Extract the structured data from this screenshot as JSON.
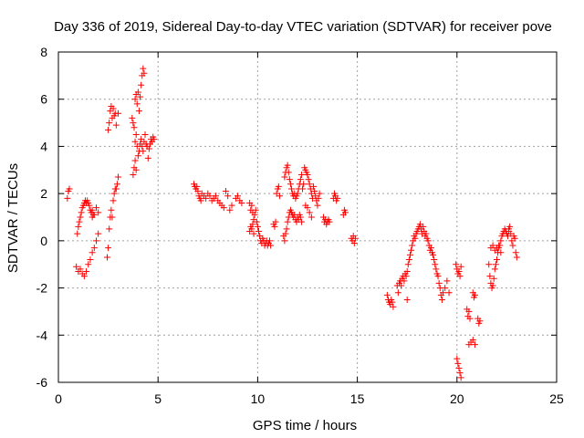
{
  "chart_data": {
    "type": "scatter",
    "title": "Day 336 of 2019, Sidereal Day-to-day VTEC variation (SDTVAR) for receiver pove",
    "xlabel": "GPS time / hours",
    "ylabel": "SDTVAR / TECUs",
    "xlim": [
      0,
      25
    ],
    "ylim": [
      -6,
      8
    ],
    "xticks": [
      "0",
      "5",
      "10",
      "15",
      "20",
      "25"
    ],
    "yticks": [
      "8",
      "6",
      "4",
      "2",
      "0",
      "-2",
      "-4",
      "-6"
    ],
    "grid": true,
    "marker": "+",
    "marker_color": "#ff0000",
    "series": [
      {
        "name": "SDTVAR",
        "segments": [
          {
            "x": [
              0.45,
              0.5,
              0.55
            ],
            "y": [
              1.8,
              2.1,
              2.2
            ]
          },
          {
            "x": [
              0.95,
              1.0,
              1.05,
              1.1,
              1.15,
              1.2,
              1.25,
              1.3,
              1.35,
              1.4,
              1.45,
              1.5,
              1.55,
              1.6,
              1.65,
              1.7,
              1.75
            ],
            "y": [
              0.3,
              0.6,
              0.8,
              1.0,
              1.2,
              1.4,
              1.5,
              1.6,
              1.7,
              1.6,
              1.7,
              1.6,
              1.5,
              1.3,
              1.2,
              1.0,
              1.1
            ]
          },
          {
            "x": [
              0.9,
              1.0,
              1.1,
              1.2,
              1.3,
              1.4,
              1.5,
              1.6,
              1.7,
              1.8,
              1.9,
              2.0
            ],
            "y": [
              -1.1,
              -1.3,
              -1.2,
              -1.4,
              -1.5,
              -1.3,
              -1.0,
              -0.8,
              -0.5,
              -0.3,
              0.0,
              0.3
            ]
          },
          {
            "x": [
              1.7,
              1.8,
              1.9,
              2.0
            ],
            "y": [
              1.3,
              1.1,
              1.4,
              1.2
            ]
          },
          {
            "x": [
              2.45,
              2.5,
              2.55,
              2.6,
              2.65,
              2.7,
              2.75,
              2.8,
              2.85,
              2.9,
              2.95,
              3.0
            ],
            "y": [
              -0.7,
              -0.3,
              0.5,
              1.0,
              1.3,
              1.0,
              1.7,
              2.0,
              2.2,
              2.2,
              2.4,
              2.7
            ]
          },
          {
            "x": [
              2.5,
              2.55,
              2.6,
              2.65,
              2.7,
              2.75,
              2.8,
              2.85,
              2.9,
              3.0
            ],
            "y": [
              4.7,
              5.0,
              5.5,
              5.7,
              5.2,
              5.6,
              5.3,
              5.4,
              4.9,
              5.4
            ]
          },
          {
            "x": [
              3.7,
              3.75,
              3.8,
              3.85,
              3.9,
              3.95,
              4.0,
              4.05,
              4.1,
              4.15,
              4.2,
              4.25,
              4.3,
              4.35,
              4.4,
              4.45
            ],
            "y": [
              5.2,
              5.0,
              4.8,
              4.2,
              4.5,
              4.0,
              3.6,
              3.8,
              4.1,
              4.3,
              4.0,
              3.8,
              4.2,
              4.5,
              4.1,
              4.0
            ]
          },
          {
            "x": [
              3.75,
              3.8,
              3.85,
              3.9
            ],
            "y": [
              2.8,
              3.1,
              3.4,
              3.0
            ]
          },
          {
            "x": [
              3.85,
              3.9,
              3.95,
              4.0,
              4.05,
              4.1,
              4.15,
              4.2,
              4.25,
              4.3
            ],
            "y": [
              6.0,
              6.2,
              5.8,
              6.3,
              5.5,
              6.1,
              6.6,
              7.0,
              7.3,
              7.1
            ]
          },
          {
            "x": [
              4.5,
              4.55,
              4.6,
              4.65,
              4.7,
              4.75,
              4.8
            ],
            "y": [
              3.5,
              3.9,
              4.1,
              4.3,
              4.2,
              4.4,
              4.3
            ]
          },
          {
            "x": [
              6.8,
              6.85,
              6.9,
              6.95,
              7.0,
              7.05,
              7.1,
              7.15,
              7.2,
              7.3,
              7.4,
              7.5,
              7.6,
              7.7,
              7.8,
              7.9,
              8.0,
              8.1,
              8.2,
              8.3,
              8.4,
              8.5,
              8.6,
              8.7
            ],
            "y": [
              2.4,
              2.3,
              2.2,
              2.3,
              2.1,
              1.9,
              1.8,
              1.7,
              2.0,
              1.9,
              1.8,
              2.0,
              1.9,
              1.7,
              1.8,
              1.9,
              1.7,
              1.6,
              1.5,
              1.4,
              2.1,
              1.9,
              1.3,
              1.5
            ]
          },
          {
            "x": [
              8.9,
              9.0,
              9.1,
              9.2
            ],
            "y": [
              1.8,
              1.9,
              1.7,
              1.6
            ]
          },
          {
            "x": [
              9.6,
              9.65,
              9.7,
              9.75,
              9.8,
              9.85,
              9.9,
              9.95,
              10.0,
              10.05,
              10.1,
              10.15,
              10.2,
              10.25,
              10.3,
              10.35,
              10.4,
              10.45,
              10.5,
              10.55,
              10.6,
              10.65
            ],
            "y": [
              1.6,
              1.3,
              1.5,
              1.2,
              0.9,
              1.1,
              1.3,
              0.8,
              0.6,
              0.4,
              0.2,
              0.0,
              -0.1,
              0.1,
              0.0,
              -0.2,
              -0.1,
              0.0,
              -0.2,
              -0.1,
              0.0,
              -0.2
            ]
          },
          {
            "x": [
              9.6,
              9.65,
              9.7,
              9.75,
              9.8
            ],
            "y": [
              0.4,
              0.6,
              0.5,
              0.7,
              0.3
            ]
          },
          {
            "x": [
              10.8,
              10.85,
              10.9,
              10.95,
              11.0,
              11.05,
              11.1
            ],
            "y": [
              0.7,
              0.6,
              0.8,
              2.0,
              2.2,
              2.3,
              1.9
            ]
          },
          {
            "x": [
              11.3,
              11.35,
              11.4,
              11.45,
              11.5,
              11.55,
              11.6,
              11.65,
              11.7,
              11.75,
              11.8,
              11.85,
              11.9,
              11.95,
              12.0,
              12.05,
              12.1,
              12.15,
              12.2
            ],
            "y": [
              0.2,
              0.0,
              0.3,
              0.5,
              0.8,
              1.0,
              1.2,
              1.3,
              1.2,
              1.1,
              1.0,
              1.1,
              0.9,
              0.8,
              1.0,
              0.9,
              1.1,
              1.0,
              0.8
            ]
          },
          {
            "x": [
              11.35,
              11.4,
              11.45,
              11.5,
              11.55,
              11.6,
              11.65,
              11.7,
              11.75,
              11.8,
              11.85,
              11.9,
              11.95,
              12.0,
              12.05,
              12.1,
              12.15,
              12.2,
              12.25,
              12.3
            ],
            "y": [
              2.7,
              2.9,
              3.1,
              3.2,
              2.9,
              2.6,
              2.4,
              2.2,
              2.0,
              1.9,
              2.0,
              1.8,
              1.9,
              2.0,
              2.2,
              2.4,
              2.6,
              2.8,
              2.2,
              2.4
            ]
          },
          {
            "x": [
              12.35,
              12.4,
              12.45,
              12.5,
              12.55,
              12.6,
              12.65,
              12.7,
              12.75,
              12.8,
              12.85,
              12.9,
              12.95,
              13.0,
              13.05,
              13.1
            ],
            "y": [
              3.1,
              3.0,
              2.9,
              2.8,
              2.6,
              2.4,
              2.2,
              2.0,
              1.8,
              2.3,
              2.1,
              1.9,
              1.7,
              1.5,
              1.8,
              2.0
            ]
          },
          {
            "x": [
              12.4,
              12.5,
              12.6,
              12.7
            ],
            "y": [
              1.5,
              1.4,
              1.2,
              1.0
            ]
          },
          {
            "x": [
              13.3,
              13.35,
              13.4,
              13.45,
              13.5,
              13.55,
              13.6
            ],
            "y": [
              1.0,
              0.8,
              0.9,
              0.7,
              0.8,
              0.9,
              0.8
            ]
          },
          {
            "x": [
              13.8,
              13.85,
              13.9,
              13.95,
              14.0
            ],
            "y": [
              1.8,
              2.0,
              1.9,
              1.7,
              1.8
            ]
          },
          {
            "x": [
              14.3,
              14.35,
              14.4
            ],
            "y": [
              1.1,
              1.3,
              1.2
            ]
          },
          {
            "x": [
              14.7,
              14.75,
              14.8,
              14.85,
              14.9
            ],
            "y": [
              0.1,
              0.0,
              0.2,
              -0.1,
              0.1
            ]
          },
          {
            "x": [
              16.5,
              16.55,
              16.6,
              16.65,
              16.7,
              16.75,
              16.8
            ],
            "y": [
              -2.3,
              -2.5,
              -2.6,
              -2.7,
              -2.5,
              -2.6,
              -2.8
            ]
          },
          {
            "x": [
              17.0,
              17.05,
              17.1,
              17.15,
              17.2,
              17.25,
              17.3,
              17.35,
              17.4,
              17.45,
              17.5,
              17.55,
              17.6,
              17.65,
              17.7,
              17.75,
              17.8,
              17.85,
              17.9,
              17.95,
              18.0,
              18.05,
              18.1,
              18.15,
              18.2,
              18.25,
              18.3,
              18.35,
              18.4,
              18.45,
              18.5,
              18.55,
              18.6,
              18.65,
              18.7,
              18.75,
              18.8,
              18.85,
              18.9,
              18.95,
              19.0,
              19.05,
              19.1,
              19.15,
              19.2,
              19.25,
              19.3,
              19.4,
              19.5
            ],
            "y": [
              -1.9,
              -2.2,
              -1.8,
              -1.7,
              -1.9,
              -1.6,
              -1.5,
              -1.7,
              -1.4,
              -1.5,
              -1.3,
              -1.0,
              -0.8,
              -0.6,
              -0.4,
              -0.2,
              0.0,
              0.2,
              0.1,
              0.3,
              0.4,
              0.5,
              0.6,
              0.7,
              0.5,
              0.3,
              0.6,
              0.4,
              0.2,
              0.3,
              0.1,
              0.0,
              -0.2,
              -0.4,
              -0.3,
              -0.5,
              -0.6,
              -0.8,
              -1.0,
              -1.2,
              -1.4,
              -1.5,
              -1.8,
              -2.0,
              -2.3,
              -2.5,
              -2.2,
              -2.0,
              -1.7
            ]
          },
          {
            "x": [
              17.5,
              19.6
            ],
            "y": [
              -2.5,
              -2.2
            ]
          },
          {
            "x": [
              19.95,
              20.0,
              20.05,
              20.1,
              20.15,
              20.2
            ],
            "y": [
              -1.0,
              -1.2,
              -1.4,
              -1.3,
              -1.5,
              -1.1
            ]
          },
          {
            "x": [
              20.0,
              20.05,
              20.1,
              20.15,
              20.2
            ],
            "y": [
              -5.0,
              -5.2,
              -5.4,
              -5.6,
              -5.8
            ]
          },
          {
            "x": [
              20.5,
              20.55,
              20.6,
              20.65
            ],
            "y": [
              -2.9,
              -3.2,
              -3.0,
              -3.3
            ]
          },
          {
            "x": [
              20.6,
              20.7,
              20.8,
              20.9
            ],
            "y": [
              -4.4,
              -4.3,
              -4.2,
              -4.4
            ]
          },
          {
            "x": [
              20.8,
              20.85,
              20.9
            ],
            "y": [
              -2.2,
              -2.4,
              -2.3
            ]
          },
          {
            "x": [
              21.05,
              21.1,
              21.15
            ],
            "y": [
              -3.3,
              -3.5,
              -3.4
            ]
          },
          {
            "x": [
              21.6,
              21.65,
              21.7,
              21.75,
              21.8,
              21.85,
              21.9,
              21.95,
              22.0,
              22.05,
              22.1,
              22.15,
              22.2,
              22.25,
              22.3,
              22.35,
              22.4,
              22.45,
              22.5,
              22.55,
              22.6
            ],
            "y": [
              -1.0,
              -1.5,
              -1.8,
              -2.0,
              -1.9,
              -1.6,
              -1.2,
              -1.0,
              -0.8,
              -0.5,
              -0.3,
              -0.2,
              0.0,
              0.2,
              0.3,
              0.4,
              0.5,
              0.4,
              0.3,
              0.2,
              0.4
            ]
          },
          {
            "x": [
              21.7,
              21.8,
              21.9,
              22.0,
              22.1,
              22.2
            ],
            "y": [
              -0.3,
              -0.2,
              -0.4,
              -0.3,
              -0.2,
              -0.5
            ]
          },
          {
            "x": [
              22.6,
              22.65,
              22.7,
              22.75,
              22.8,
              22.85,
              22.9,
              22.95,
              23.0
            ],
            "y": [
              0.5,
              0.6,
              0.3,
              0.0,
              -0.2,
              0.2,
              0.1,
              -0.5,
              -0.7
            ]
          }
        ]
      }
    ]
  }
}
